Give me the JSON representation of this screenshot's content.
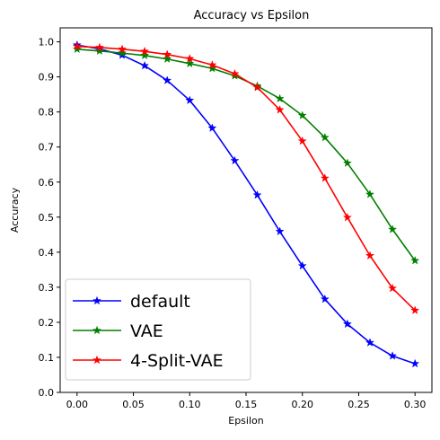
{
  "chart_data": {
    "type": "line",
    "title": "Accuracy vs Epsilon",
    "xlabel": "Epsilon",
    "ylabel": "Accuracy",
    "xlim": [
      -0.015,
      0.315
    ],
    "ylim": [
      0.0,
      1.04
    ],
    "xticks": [
      0.0,
      0.05,
      0.1,
      0.15,
      0.2,
      0.25,
      0.3
    ],
    "xtick_labels": [
      "0.00",
      "0.05",
      "0.10",
      "0.15",
      "0.20",
      "0.25",
      "0.30"
    ],
    "yticks": [
      0.0,
      0.1,
      0.2,
      0.3,
      0.4,
      0.5,
      0.6,
      0.7,
      0.8,
      0.9,
      1.0
    ],
    "ytick_labels": [
      "0.0",
      "0.1",
      "0.2",
      "0.3",
      "0.4",
      "0.5",
      "0.6",
      "0.7",
      "0.8",
      "0.9",
      "1.0"
    ],
    "grid": false,
    "legend_position": "lower-left",
    "marker": "star",
    "x": [
      0.0,
      0.02,
      0.04,
      0.06,
      0.08,
      0.1,
      0.12,
      0.14,
      0.16,
      0.18,
      0.2,
      0.22,
      0.24,
      0.26,
      0.28,
      0.3
    ],
    "series": [
      {
        "name": "default",
        "color": "#0000ff",
        "values": [
          0.991,
          0.98,
          0.962,
          0.932,
          0.89,
          0.833,
          0.754,
          0.661,
          0.563,
          0.459,
          0.361,
          0.266,
          0.195,
          0.142,
          0.104,
          0.082
        ]
      },
      {
        "name": "VAE",
        "color": "#008000",
        "values": [
          0.979,
          0.974,
          0.968,
          0.961,
          0.951,
          0.938,
          0.924,
          0.903,
          0.874,
          0.838,
          0.79,
          0.727,
          0.654,
          0.565,
          0.465,
          0.376
        ]
      },
      {
        "name": "4-Split-VAE",
        "color": "#ff0000",
        "values": [
          0.987,
          0.984,
          0.979,
          0.973,
          0.964,
          0.952,
          0.934,
          0.909,
          0.87,
          0.806,
          0.717,
          0.611,
          0.499,
          0.39,
          0.297,
          0.234
        ]
      }
    ]
  }
}
